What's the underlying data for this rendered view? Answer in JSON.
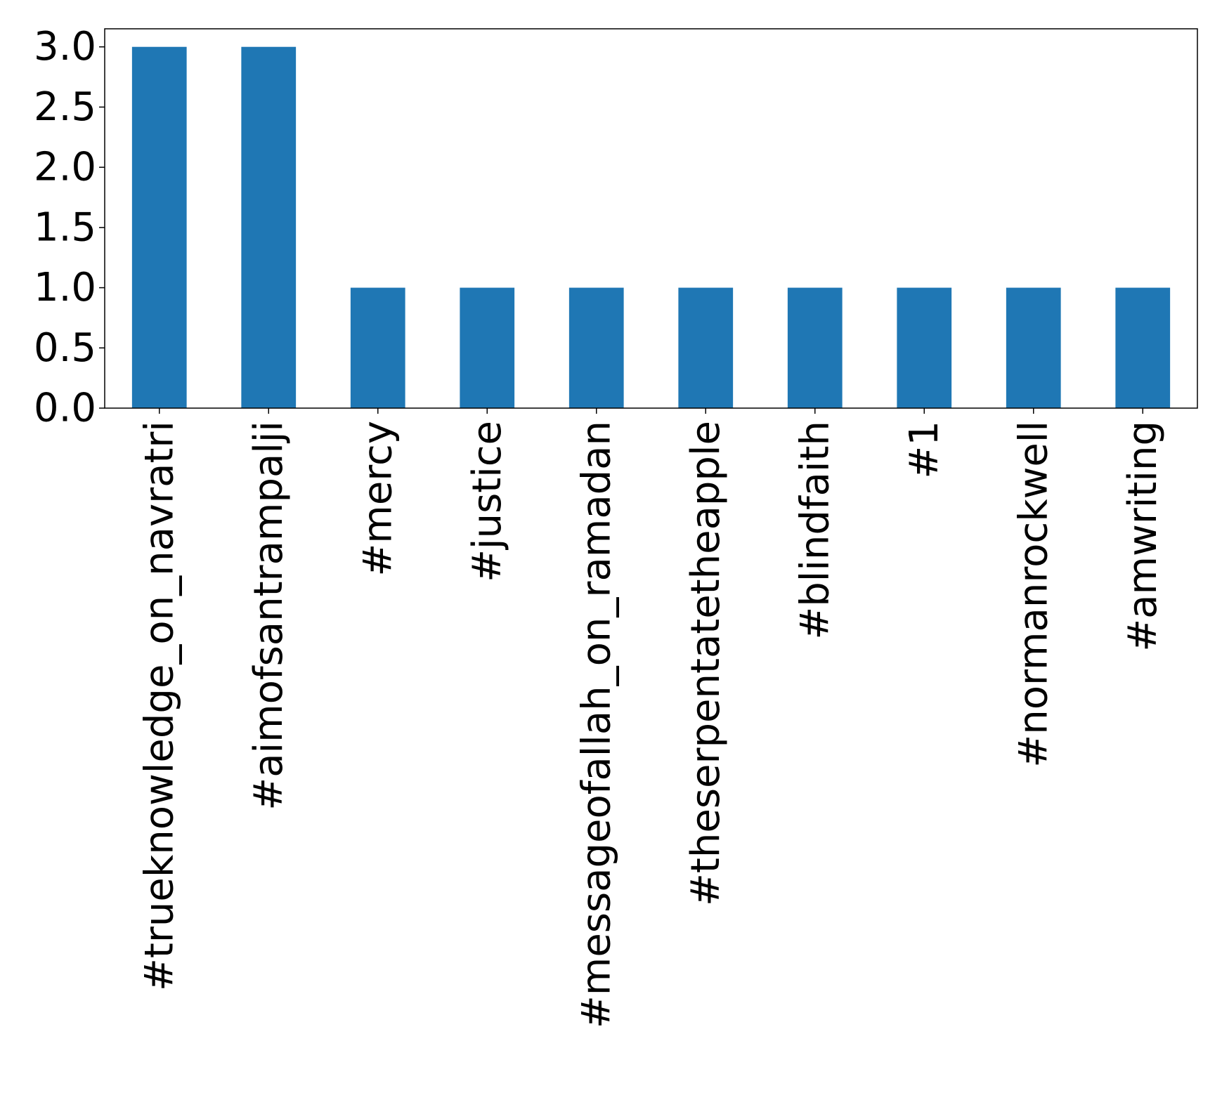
{
  "chart_data": {
    "type": "bar",
    "title": "",
    "xlabel": "",
    "ylabel": "",
    "categories": [
      "#trueknowledge_on_navratri",
      "#aimofsantrampalji",
      "#mercy",
      "#justice",
      "#messageofallah_on_ramadan",
      "#theserpentatetheapple",
      "#blindfaith",
      "#1",
      "#normanrockwell",
      "#amwriting"
    ],
    "values": [
      3,
      3,
      1,
      1,
      1,
      1,
      1,
      1,
      1,
      1
    ],
    "ylim": [
      0,
      3.15
    ],
    "yticks": [
      "0.0",
      "0.5",
      "1.0",
      "1.5",
      "2.0",
      "2.5",
      "3.0"
    ],
    "bar_color": "#1f77b4",
    "grid": false,
    "legend": "none"
  }
}
